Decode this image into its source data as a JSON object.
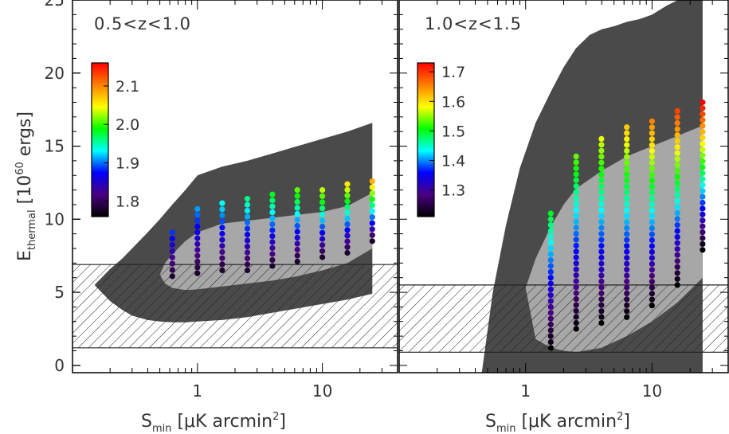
{
  "chart_data": {
    "type": "scatter",
    "ylabel_main": "E",
    "ylabel_sub": "thermal",
    "ylabel_unit_pre": " [10",
    "ylabel_unit_exp": "60",
    "ylabel_unit_post": " ergs]",
    "xlabel_main": "S",
    "xlabel_sub": "min",
    "xlabel_unit_pre": " [μK arcmin",
    "xlabel_unit_exp": "2",
    "xlabel_unit_post": "]",
    "y_scale": "linear",
    "x_scale": "log",
    "ylim": [
      -0.5,
      25
    ],
    "yticks": [
      0,
      5,
      10,
      15,
      20,
      25
    ],
    "yticklabels": [
      "0",
      "5",
      "10",
      "15",
      "20",
      "25"
    ],
    "colors": {
      "outer_region": "#4a4a4a",
      "inner_region": "#a7a7a7",
      "hatch_lines": "#222222",
      "colormap": [
        "#000000",
        "#4b0082",
        "#0000ff",
        "#00ffff",
        "#00ff00",
        "#ffff00",
        "#ff7f00",
        "#ff0000"
      ]
    },
    "panels": [
      {
        "label": "0.5<z<1.0",
        "xlim": [
          0.1,
          40
        ],
        "xticks": [
          1,
          10
        ],
        "xticklabels": [
          "1",
          "10"
        ],
        "x": [
          0.63,
          1.0,
          1.58,
          2.51,
          3.98,
          6.31,
          10.0,
          15.85,
          25.12
        ],
        "point_y": [
          [
            6.1,
            9.1
          ],
          [
            6.3,
            10.7
          ],
          [
            6.5,
            11.1
          ],
          [
            6.5,
            11.4
          ],
          [
            6.8,
            11.7
          ],
          [
            7.1,
            12.0
          ],
          [
            7.4,
            12.0
          ],
          [
            7.7,
            12.4
          ],
          [
            8.5,
            12.6
          ]
        ],
        "color_scale": {
          "min": 1.76,
          "max": 2.16,
          "ticks": [
            1.8,
            1.9,
            2.0,
            2.1
          ],
          "ticklabels": [
            "1.8",
            "1.9",
            "2.0",
            "2.1"
          ]
        },
        "outer_region": {
          "x": [
            0.15,
            0.2,
            0.25,
            0.3,
            0.4,
            0.5,
            0.63,
            0.8,
            1.0,
            1.58,
            2.51,
            3.98,
            6.31,
            10.0,
            15.85,
            25.12
          ],
          "upper": [
            5.5,
            6.6,
            7.3,
            8.0,
            9.1,
            10.0,
            11.0,
            12.0,
            13.0,
            13.6,
            14.0,
            14.5,
            15.0,
            15.5,
            16.0,
            16.6
          ],
          "lower": [
            5.5,
            4.4,
            3.8,
            3.4,
            3.1,
            3.0,
            2.95,
            2.95,
            3.0,
            3.1,
            3.3,
            3.6,
            3.9,
            4.2,
            4.5,
            4.9
          ]
        },
        "inner_region": {
          "x": [
            0.5,
            0.55,
            0.63,
            0.8,
            1.0,
            1.58,
            2.51,
            3.98,
            6.31,
            10.0,
            15.85,
            25.12
          ],
          "upper": [
            6.2,
            7.0,
            7.6,
            8.5,
            9.1,
            9.7,
            9.9,
            10.1,
            10.3,
            10.5,
            10.9,
            11.8
          ],
          "lower": [
            6.2,
            5.6,
            5.3,
            5.15,
            5.2,
            5.4,
            5.6,
            5.8,
            6.1,
            6.5,
            7.0,
            8.0
          ]
        },
        "hatched_band": [
          1.2,
          6.9
        ]
      },
      {
        "label": "1.0<z<1.5",
        "xlim": [
          0.1,
          40
        ],
        "xticks": [
          1,
          10
        ],
        "xticklabels": [
          "1",
          "10"
        ],
        "x": [
          1.58,
          2.51,
          3.98,
          6.31,
          10.0,
          15.85,
          25.12
        ],
        "point_y": [
          [
            1.2,
            10.4
          ],
          [
            2.5,
            14.3
          ],
          [
            2.9,
            15.5
          ],
          [
            3.3,
            16.3
          ],
          [
            4.1,
            16.7
          ],
          [
            5.5,
            17.4
          ],
          [
            7.9,
            18.0
          ]
        ],
        "color_scale": {
          "min": 1.21,
          "max": 1.73,
          "ticks": [
            1.3,
            1.4,
            1.5,
            1.6,
            1.7
          ],
          "ticklabels": [
            "1.3",
            "1.4",
            "1.5",
            "1.6",
            "1.7"
          ]
        },
        "outer_region": {
          "x": [
            0.45,
            0.55,
            0.7,
            0.9,
            1.2,
            1.6,
            2.0,
            2.5,
            3.2,
            4.0,
            5.0,
            6.3,
            8.0,
            10.0,
            13.0,
            16.0,
            20.0,
            25.12
          ],
          "upper": [
            -0.5,
            5.0,
            9.6,
            13.5,
            16.6,
            18.8,
            20.4,
            21.7,
            22.6,
            23.0,
            23.2,
            23.5,
            23.7,
            24.0,
            24.6,
            25.0,
            25.0,
            25.0
          ],
          "lower": [
            -0.5,
            -0.5,
            -0.5,
            -0.5,
            -0.5,
            -0.5,
            -0.5,
            -0.5,
            -0.5,
            -0.5,
            -0.5,
            -0.5,
            -0.5,
            -0.5,
            -0.5,
            -0.5,
            -0.5,
            -0.5
          ]
        },
        "inner_region": {
          "x": [
            1.0,
            1.2,
            1.58,
            2.0,
            2.51,
            3.98,
            6.31,
            10.0,
            15.85,
            25.12
          ],
          "upper": [
            5.3,
            7.3,
            9.5,
            11.0,
            12.1,
            13.3,
            14.3,
            15.0,
            15.7,
            16.4
          ],
          "lower": [
            5.3,
            1.8,
            1.2,
            1.0,
            0.9,
            1.2,
            2.0,
            3.0,
            4.3,
            6.0
          ]
        },
        "hatched_band": [
          0.9,
          5.5
        ]
      }
    ]
  }
}
